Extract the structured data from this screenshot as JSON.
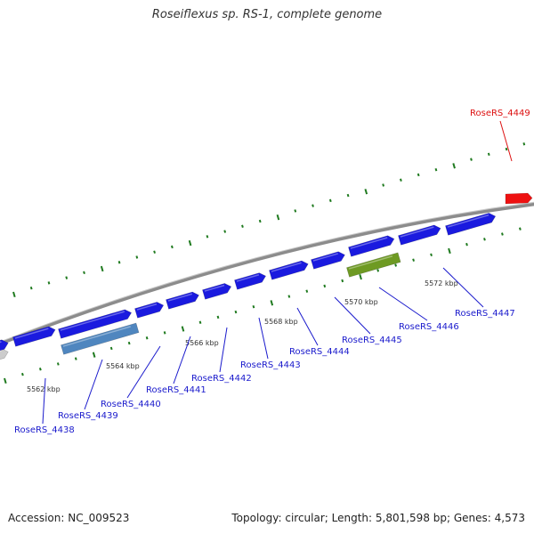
{
  "title": "Roseiflexus sp. RS-1, complete genome",
  "footer": {
    "accession": "Accession: NC_009523",
    "summary": "Topology: circular; Length: 5,801,598 bp; Genes: 4,573"
  },
  "colors": {
    "gene_default": "#1a1adf",
    "gene_highlight": "#ee1111",
    "gene_light_blue": "#4f86bf",
    "gene_olive": "#6e9a23",
    "gene_grey": "#cccccc",
    "backbone": "#8c8c8c",
    "tick": "#1f7a1f",
    "label_default": "#1a1acc",
    "label_highlight": "#dd1111"
  },
  "scale_ticks": [
    "5562 kbp",
    "5564 kbp",
    "5566 kbp",
    "5568 kbp",
    "5570 kbp",
    "5572 kbp"
  ],
  "gene_labels": [
    {
      "text": "RoseRS_4438",
      "color": "label_default"
    },
    {
      "text": "RoseRS_4439",
      "color": "label_default"
    },
    {
      "text": "RoseRS_4440",
      "color": "label_default"
    },
    {
      "text": "RoseRS_4441",
      "color": "label_default"
    },
    {
      "text": "RoseRS_4442",
      "color": "label_default"
    },
    {
      "text": "RoseRS_4443",
      "color": "label_default"
    },
    {
      "text": "RoseRS_4444",
      "color": "label_default"
    },
    {
      "text": "RoseRS_4445",
      "color": "label_default"
    },
    {
      "text": "RoseRS_4446",
      "color": "label_default"
    },
    {
      "text": "RoseRS_4447",
      "color": "label_default"
    },
    {
      "text": "RoseRS_4449",
      "color": "label_highlight"
    }
  ]
}
